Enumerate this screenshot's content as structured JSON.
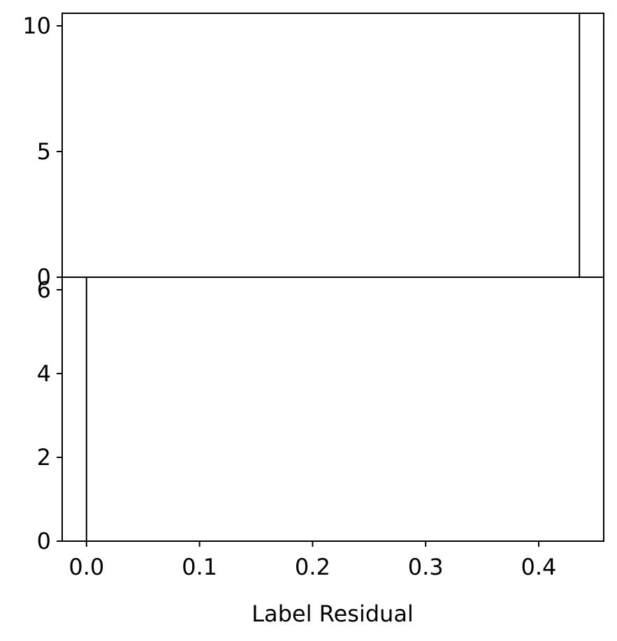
{
  "chart_data": [
    {
      "type": "bar",
      "panel": "top",
      "xlabel": "",
      "ylabel": "",
      "xlim": [
        -0.0215,
        0.4575
      ],
      "ylim": [
        0,
        10.5
      ],
      "y_ticks": [
        0,
        5,
        10
      ],
      "y_tick_labels": [
        "0",
        "5",
        "10"
      ],
      "bars": [
        {
          "x": 0.436,
          "value": 10.5,
          "description": "full-height vertical line"
        }
      ],
      "grid": false
    },
    {
      "type": "bar",
      "panel": "bottom",
      "xlabel": "Label Residual",
      "ylabel": "",
      "xlim": [
        -0.0215,
        0.4575
      ],
      "ylim": [
        0,
        6.3
      ],
      "x_ticks": [
        0.0,
        0.1,
        0.2,
        0.3,
        0.4
      ],
      "x_tick_labels": [
        "0.0",
        "0.1",
        "0.2",
        "0.3",
        "0.4"
      ],
      "y_ticks": [
        0,
        2,
        4,
        6
      ],
      "y_tick_labels": [
        "0",
        "2",
        "4",
        "6"
      ],
      "bars": [
        {
          "x": 0.0,
          "value": 6.3,
          "description": "full-height vertical line"
        }
      ],
      "grid": false
    }
  ]
}
